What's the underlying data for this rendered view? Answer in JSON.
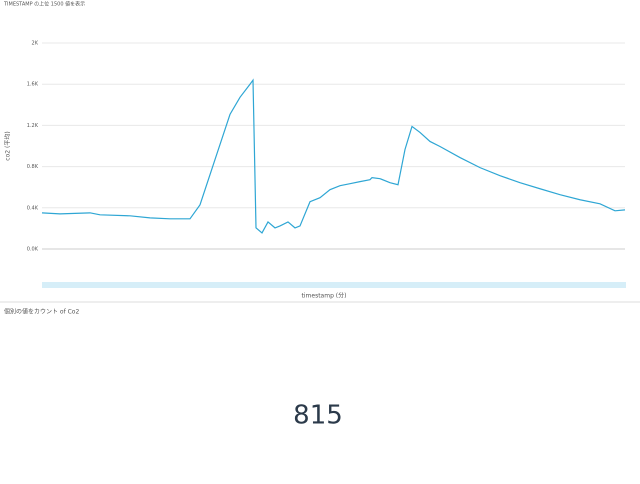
{
  "header": {
    "title": "TIMESTAMP の上位 1500 値を表示"
  },
  "chart_data": {
    "type": "line",
    "ylabel": "co2 (平均)",
    "xlabel": "timestamp (分)",
    "color": "#2ea6d4",
    "ylim": [
      0,
      2000
    ],
    "yticks": [
      {
        "value": 0,
        "label": "0.0K"
      },
      {
        "value": 400,
        "label": "0.4K"
      },
      {
        "value": 800,
        "label": "0.8K"
      },
      {
        "value": 1200,
        "label": "1.2K"
      },
      {
        "value": 1600,
        "label": "1.6K"
      },
      {
        "value": 2000,
        "label": "2K"
      }
    ],
    "grid": true,
    "values": [
      351,
      341,
      351,
      332,
      322,
      302,
      293,
      293,
      429,
      868,
      1307,
      1473,
      1600,
      1639,
      205,
      156,
      263,
      205,
      224,
      263,
      205,
      224,
      459,
      498,
      576,
      615,
      634,
      654,
      673,
      693,
      683,
      644,
      624,
      966,
      1190,
      1132,
      1044,
      995,
      888,
      790,
      712,
      644,
      585,
      527,
      478,
      439,
      371,
      380
    ],
    "xpos": [
      42,
      60,
      90,
      100,
      130,
      150,
      170,
      190,
      200,
      215,
      230,
      240,
      250,
      253,
      256,
      262,
      268,
      275,
      280,
      288,
      295,
      300,
      310,
      320,
      330,
      340,
      350,
      360,
      370,
      372,
      380,
      390,
      398,
      405,
      412,
      420,
      430,
      440,
      460,
      480,
      500,
      520,
      540,
      560,
      580,
      600,
      615,
      625
    ]
  },
  "kpi": {
    "title": "個別の値をカウント of Co2",
    "value": 815
  }
}
